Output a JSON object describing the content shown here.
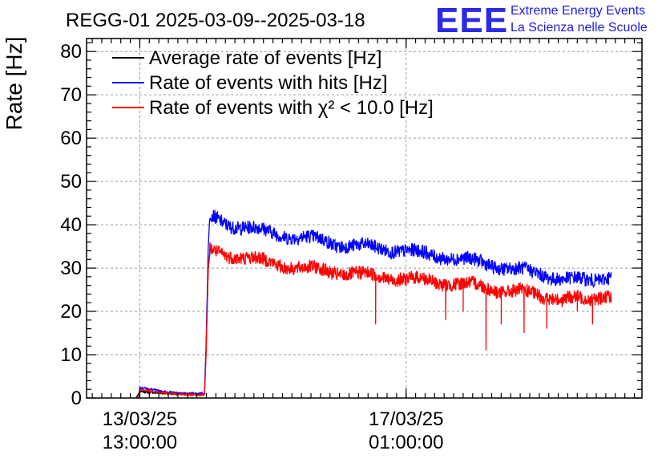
{
  "chart_data": {
    "type": "line",
    "title": "REGG-01 2025-03-09--2025-03-18",
    "ylabel": "Rate [Hz]",
    "xlabel": "",
    "ylim": [
      0,
      83
    ],
    "yticks": [
      "0",
      "10",
      "20",
      "30",
      "40",
      "50",
      "60",
      "70",
      "80"
    ],
    "x_unit": "days since 13/03/25 13:00:00",
    "xlim": [
      -0.7,
      6.6
    ],
    "xticks": [
      {
        "x": 0.0,
        "date": "13/03/25",
        "time": "13:00:00"
      },
      {
        "x": 3.5,
        "date": "17/03/25",
        "time": "01:00:00"
      }
    ],
    "grid": true,
    "legend_position": "top-left",
    "series": [
      {
        "name": "Average rate of events [Hz]",
        "color": "#000000",
        "x": [
          -0.05,
          0.0,
          0.3,
          0.6,
          0.85,
          0.87,
          0.9,
          0.93
        ],
        "y": [
          0,
          1.5,
          1.1,
          0.9,
          0.9,
          10,
          30,
          35
        ]
      },
      {
        "name": "Rate of events with hits [Hz]",
        "color": "#0000ff",
        "x": [
          -0.05,
          -0.01,
          0.0,
          0.3,
          0.6,
          0.85,
          0.87,
          0.9,
          0.92,
          1.2,
          1.5,
          1.8,
          2.1,
          2.4,
          2.6,
          2.9,
          3.2,
          3.5,
          3.8,
          4.1,
          4.4,
          4.7,
          5.0,
          5.3,
          5.6,
          5.9,
          6.1,
          6.2
        ],
        "y": [
          0,
          0.5,
          2.5,
          1.5,
          1.0,
          1.0,
          12,
          35,
          42,
          40,
          39,
          38,
          37,
          36.5,
          35.5,
          35,
          34.5,
          34,
          33,
          32.5,
          31.5,
          30.5,
          29.5,
          28.5,
          27.5,
          27,
          28,
          28.5
        ]
      },
      {
        "name": "Rate of events with χ² < 10.0 [Hz]",
        "color": "#ff0000",
        "x": [
          -0.05,
          -0.01,
          0.0,
          0.3,
          0.6,
          0.85,
          0.87,
          0.9,
          0.92,
          1.2,
          1.5,
          1.8,
          2.1,
          2.4,
          2.6,
          2.9,
          3.2,
          3.5,
          3.8,
          4.1,
          4.4,
          4.7,
          5.0,
          5.3,
          5.6,
          5.9,
          6.1,
          6.2
        ],
        "y": [
          0,
          0.4,
          2.0,
          1.2,
          0.8,
          0.8,
          10,
          30,
          34,
          33,
          32,
          31,
          30,
          29.5,
          29,
          28.5,
          28,
          27.5,
          27,
          26.5,
          26,
          25,
          24.5,
          23.5,
          23,
          22.5,
          24,
          24
        ]
      }
    ],
    "annotations": [
      {
        "series": 2,
        "x": 3.1,
        "y": 17
      },
      {
        "series": 2,
        "x": 4.02,
        "y": 18
      },
      {
        "series": 2,
        "x": 4.25,
        "y": 20
      },
      {
        "series": 2,
        "x": 4.55,
        "y": 11
      },
      {
        "series": 2,
        "x": 4.75,
        "y": 17
      },
      {
        "series": 2,
        "x": 5.05,
        "y": 15
      },
      {
        "series": 2,
        "x": 5.35,
        "y": 16
      },
      {
        "series": 2,
        "x": 5.55,
        "y": 21
      },
      {
        "series": 2,
        "x": 5.75,
        "y": 20
      },
      {
        "series": 2,
        "x": 5.95,
        "y": 17
      }
    ]
  },
  "logo": {
    "mark": "EEE",
    "line1": "Extreme Energy Events",
    "line2": "La Scienza nelle Scuole"
  }
}
